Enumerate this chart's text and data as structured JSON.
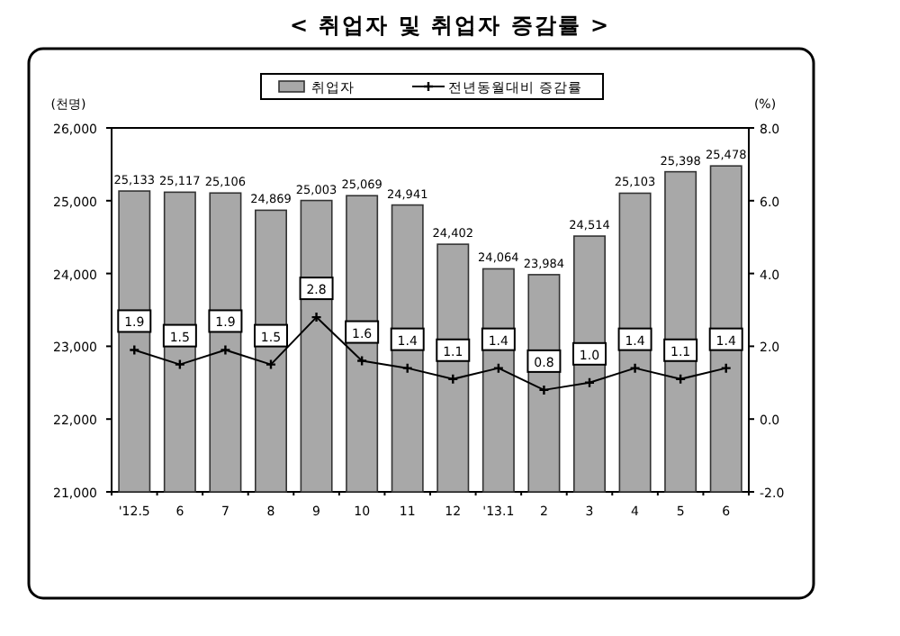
{
  "chart_data": {
    "type": "bar",
    "title": "< 취업자 및 취업자 증감률 >",
    "ylabel": "(천명)",
    "y2label": "(%)",
    "categories": [
      "'12.5",
      "6",
      "7",
      "8",
      "9",
      "10",
      "11",
      "12",
      "'13.1",
      "2",
      "3",
      "4",
      "5",
      "6"
    ],
    "series": [
      {
        "name": "취업자",
        "color": "#a8a8a8",
        "values": [
          25133,
          25117,
          25106,
          24869,
          25003,
          25069,
          24941,
          24402,
          24064,
          23984,
          24514,
          25103,
          25398,
          25478
        ],
        "value_labels": [
          "25,133",
          "25,117",
          "25,106",
          "24,869",
          "25,003",
          "25,069",
          "24,941",
          "24,402",
          "24,064",
          "23,984",
          "24,514",
          "25,103",
          "25,398",
          "25,478"
        ]
      },
      {
        "name": "전년동월대비 증감률",
        "type": "line",
        "axis": "y2",
        "color": "#000000",
        "marker": "cross",
        "values": [
          1.9,
          1.5,
          1.9,
          1.5,
          2.8,
          1.6,
          1.4,
          1.1,
          1.4,
          0.8,
          1.0,
          1.4,
          1.1,
          1.4
        ],
        "value_labels": [
          "1.9",
          "1.5",
          "1.9",
          "1.5",
          "2.8",
          "1.6",
          "1.4",
          "1.1",
          "1.4",
          "0.8",
          "1.0",
          "1.4",
          "1.1",
          "1.4"
        ]
      }
    ],
    "ylim": [
      21000,
      26000
    ],
    "yticks": [
      {
        "value": 21000,
        "label": "21,000"
      },
      {
        "value": 22000,
        "label": "22,000"
      },
      {
        "value": 23000,
        "label": "23,000"
      },
      {
        "value": 24000,
        "label": "24,000"
      },
      {
        "value": 25000,
        "label": "25,000"
      },
      {
        "value": 26000,
        "label": "26,000"
      }
    ],
    "y2lim": [
      -2,
      8
    ],
    "y2ticks": [
      {
        "value": -2,
        "label": "-2.0"
      },
      {
        "value": 0,
        "label": "0.0"
      },
      {
        "value": 2,
        "label": "2.0"
      },
      {
        "value": 4,
        "label": "4.0"
      },
      {
        "value": 6,
        "label": "6.0"
      },
      {
        "value": 8,
        "label": "8.0"
      }
    ],
    "legend": "top",
    "grid": false
  }
}
